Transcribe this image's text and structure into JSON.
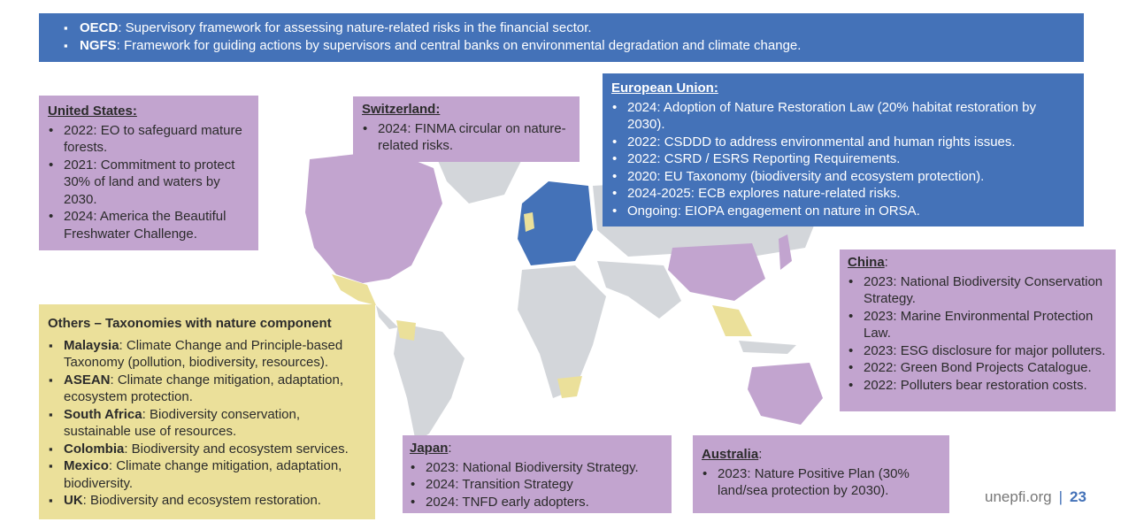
{
  "top_bar": {
    "items": [
      {
        "label": "OECD",
        "text": ": Supervisory framework for assessing nature-related risks in the financial sector."
      },
      {
        "label": "NGFS",
        "text": ": Framework for guiding actions by supervisors and central banks on environmental degradation and climate change."
      }
    ]
  },
  "us": {
    "title": "United States:",
    "items": [
      "2022: EO to safeguard mature forests.",
      "2021: Commitment to protect 30% of land and waters by 2030.",
      "2024: America the Beautiful Freshwater Challenge."
    ]
  },
  "switzerland": {
    "title": "Switzerland:",
    "items": [
      "2024: FINMA circular on nature-related risks."
    ]
  },
  "eu": {
    "title": "European Union:",
    "items": [
      "2024: Adoption of Nature Restoration Law (20% habitat restoration by 2030).",
      "2022: CSDDD to address environmental and human rights issues.",
      "2022: CSRD / ESRS Reporting Requirements.",
      "2020: EU Taxonomy (biodiversity and ecosystem protection).",
      "2024-2025: ECB explores nature-related risks.",
      "Ongoing: EIOPA engagement on nature in ORSA."
    ]
  },
  "china": {
    "title": "China",
    "title_suffix": ":",
    "items": [
      "2023: National Biodiversity Conservation Strategy.",
      "2023: Marine Environmental Protection Law.",
      "2023: ESG disclosure for major polluters.",
      "2022: Green Bond Projects Catalogue.",
      "2022: Polluters bear restoration costs."
    ]
  },
  "others": {
    "title": "Others – Taxonomies with nature component",
    "items": [
      {
        "label": "Malaysia",
        "text": ": Climate Change and Principle-based Taxonomy (pollution, biodiversity, resources)."
      },
      {
        "label": "ASEAN",
        "text": ": Climate change mitigation, adaptation, ecosystem protection."
      },
      {
        "label": "South Africa",
        "text": ": Biodiversity conservation, sustainable use of resources."
      },
      {
        "label": "Colombia",
        "text": ": Biodiversity and ecosystem services."
      },
      {
        "label": "Mexico",
        "text": ": Climate change mitigation, adaptation, biodiversity."
      },
      {
        "label": "UK",
        "text": ": Biodiversity and ecosystem restoration."
      }
    ]
  },
  "japan": {
    "title": "Japan",
    "title_suffix": ":",
    "items": [
      "2023: National Biodiversity Strategy.",
      "2024: Transition Strategy",
      "2024: TNFD early adopters."
    ]
  },
  "australia": {
    "title": "Australia",
    "title_suffix": ":",
    "items": [
      "2023: Nature Positive Plan (30% land/sea protection by 2030)."
    ]
  },
  "footer": {
    "site": "unepfi.org",
    "separator": "|",
    "page": "23"
  },
  "colors": {
    "purple": "#c2a4cf",
    "blue": "#4472b8",
    "yellow": "#ebe09a",
    "land_grey": "#d3d6da"
  }
}
